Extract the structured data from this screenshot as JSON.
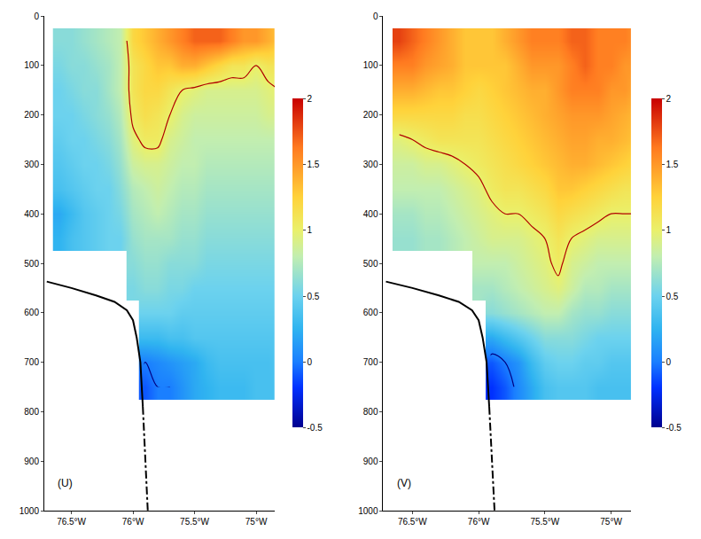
{
  "chart_data": [
    {
      "type": "heatmap",
      "label": "(U)",
      "grid": false,
      "xlim": [
        -76.72,
        -74.85
      ],
      "xticks": [
        {
          "value": -76.5,
          "label": "76.5°W"
        },
        {
          "value": -76,
          "label": "76°W"
        },
        {
          "value": -75.5,
          "label": "75.5°W"
        },
        {
          "value": -75,
          "label": "75°W"
        }
      ],
      "ylim": [
        1000,
        0
      ],
      "yticks": [
        0,
        100,
        200,
        300,
        400,
        500,
        600,
        700,
        800,
        900,
        1000
      ],
      "zlim": [
        -0.5,
        2
      ],
      "zticks": [
        -0.5,
        0,
        0.5,
        1,
        1.5,
        2
      ],
      "contours": [
        {
          "value": 1,
          "color": "#b00000"
        },
        {
          "value": 0,
          "color": "#000080"
        }
      ],
      "x": [
        -76.6,
        -76.5,
        -76.4,
        -76.3,
        -76.2,
        -76.1,
        -76.0,
        -75.9,
        -75.8,
        -75.7,
        -75.6,
        -75.5,
        -75.4,
        -75.3,
        -75.2,
        -75.1,
        -75.0,
        -74.9,
        -74.8
      ],
      "y": [
        50,
        100,
        150,
        200,
        250,
        300,
        350,
        400,
        450,
        500,
        550,
        600,
        650,
        700,
        750
      ],
      "z": [
        [
          0.6,
          0.6,
          0.65,
          0.7,
          0.75,
          0.8,
          1.2,
          1.3,
          1.4,
          1.5,
          1.6,
          1.7,
          1.7,
          1.7,
          1.6,
          1.5,
          1.5,
          1.4,
          1.3
        ],
        [
          0.55,
          0.6,
          0.6,
          0.65,
          0.7,
          0.8,
          1.1,
          1.2,
          1.3,
          1.3,
          1.4,
          1.4,
          1.3,
          1.2,
          1.1,
          1.1,
          1.0,
          1.1,
          1.1
        ],
        [
          0.5,
          0.55,
          0.6,
          0.6,
          0.7,
          0.8,
          1.1,
          1.2,
          1.2,
          1.1,
          1.0,
          0.95,
          0.9,
          0.9,
          0.9,
          0.9,
          0.9,
          0.95,
          1.0
        ],
        [
          0.5,
          0.5,
          0.55,
          0.6,
          0.65,
          0.75,
          1.05,
          1.15,
          1.1,
          1.0,
          0.9,
          0.85,
          0.85,
          0.85,
          0.85,
          0.85,
          0.85,
          0.9,
          0.9
        ],
        [
          0.45,
          0.5,
          0.5,
          0.55,
          0.6,
          0.7,
          0.95,
          1.05,
          1.05,
          0.9,
          0.85,
          0.8,
          0.8,
          0.8,
          0.8,
          0.8,
          0.8,
          0.8,
          0.8
        ],
        [
          0.4,
          0.45,
          0.5,
          0.5,
          0.55,
          0.65,
          0.85,
          0.9,
          0.9,
          0.85,
          0.8,
          0.8,
          0.75,
          0.75,
          0.75,
          0.75,
          0.75,
          0.75,
          0.75
        ],
        [
          0.35,
          0.4,
          0.45,
          0.5,
          0.5,
          0.6,
          0.75,
          0.8,
          0.85,
          0.8,
          0.75,
          0.75,
          0.7,
          0.7,
          0.7,
          0.7,
          0.7,
          0.7,
          0.7
        ],
        [
          0.2,
          0.3,
          0.4,
          0.45,
          0.5,
          0.55,
          0.7,
          0.75,
          0.8,
          0.75,
          0.7,
          0.7,
          0.65,
          0.65,
          0.65,
          0.65,
          0.65,
          0.65,
          0.65
        ],
        [
          0.25,
          0.35,
          0.4,
          0.45,
          0.5,
          0.5,
          0.65,
          0.7,
          0.7,
          0.7,
          0.65,
          0.65,
          0.6,
          0.6,
          0.6,
          0.6,
          0.6,
          0.6,
          0.6
        ],
        [
          null,
          null,
          null,
          null,
          null,
          null,
          0.6,
          0.65,
          0.65,
          0.6,
          0.6,
          0.6,
          0.55,
          0.55,
          0.55,
          0.55,
          0.55,
          0.55,
          0.55
        ],
        [
          null,
          null,
          null,
          null,
          null,
          null,
          0.55,
          0.6,
          0.6,
          0.55,
          0.55,
          0.5,
          0.5,
          0.5,
          0.5,
          0.5,
          0.5,
          0.5,
          0.5
        ],
        [
          null,
          null,
          null,
          null,
          null,
          null,
          null,
          0.5,
          0.5,
          0.5,
          0.45,
          0.45,
          0.45,
          0.45,
          0.45,
          0.45,
          0.45,
          0.45,
          0.45
        ],
        [
          null,
          null,
          null,
          null,
          null,
          null,
          null,
          0.3,
          0.3,
          0.35,
          0.35,
          0.4,
          0.4,
          0.4,
          0.4,
          0.4,
          0.4,
          0.4,
          0.4
        ],
        [
          null,
          null,
          null,
          null,
          null,
          null,
          null,
          0.0,
          0.05,
          0.1,
          0.15,
          0.2,
          0.3,
          0.35,
          0.35,
          0.35,
          0.35,
          0.35,
          0.4
        ],
        [
          null,
          null,
          null,
          null,
          null,
          null,
          null,
          -0.1,
          0.0,
          0.0,
          0.1,
          0.2,
          0.25,
          0.3,
          0.3,
          0.3,
          0.35,
          0.35,
          0.35
        ]
      ],
      "seabed": [
        {
          "x": [
            -76.7,
            -76.5,
            -76.3,
            -76.15,
            -76.05,
            -76.0,
            -75.97,
            -75.94,
            -75.92
          ],
          "y": [
            537,
            550,
            565,
            578,
            595,
            615,
            650,
            700,
            790
          ],
          "color": "#000000",
          "line_style": "solid"
        },
        {
          "x": [
            -75.92,
            -75.91,
            -75.9,
            -75.89,
            -75.88
          ],
          "y": [
            790,
            850,
            900,
            950,
            1000
          ],
          "color": "#000000",
          "line_style": "dashdot"
        }
      ]
    },
    {
      "type": "heatmap",
      "label": "(V)",
      "grid": false,
      "xlim": [
        -76.72,
        -74.85
      ],
      "xticks": [
        {
          "value": -76.5,
          "label": "76.5°W"
        },
        {
          "value": -76,
          "label": "76°W"
        },
        {
          "value": -75.5,
          "label": "75.5°W"
        },
        {
          "value": -75,
          "label": "75°W"
        }
      ],
      "ylim": [
        1000,
        0
      ],
      "yticks": [
        0,
        100,
        200,
        300,
        400,
        500,
        600,
        700,
        800,
        900,
        1000
      ],
      "zlim": [
        -0.5,
        2
      ],
      "zticks": [
        -0.5,
        0,
        0.5,
        1,
        1.5,
        2
      ],
      "contours": [
        {
          "value": 1,
          "color": "#b00000"
        },
        {
          "value": 0,
          "color": "#000080"
        }
      ],
      "x": [
        -76.6,
        -76.5,
        -76.4,
        -76.3,
        -76.2,
        -76.1,
        -76.0,
        -75.9,
        -75.8,
        -75.7,
        -75.6,
        -75.5,
        -75.4,
        -75.3,
        -75.2,
        -75.1,
        -75.0,
        -74.9,
        -74.8
      ],
      "y": [
        50,
        100,
        150,
        200,
        250,
        300,
        350,
        400,
        450,
        500,
        550,
        600,
        650,
        700,
        750
      ],
      "z": [
        [
          1.8,
          1.7,
          1.6,
          1.5,
          1.4,
          1.3,
          1.3,
          1.3,
          1.4,
          1.5,
          1.6,
          1.6,
          1.6,
          1.7,
          1.7,
          1.6,
          1.6,
          1.6,
          1.5
        ],
        [
          1.6,
          1.6,
          1.5,
          1.45,
          1.4,
          1.3,
          1.3,
          1.3,
          1.3,
          1.4,
          1.5,
          1.5,
          1.5,
          1.6,
          1.7,
          1.6,
          1.6,
          1.5,
          1.5
        ],
        [
          1.4,
          1.4,
          1.35,
          1.3,
          1.3,
          1.25,
          1.2,
          1.25,
          1.3,
          1.35,
          1.4,
          1.4,
          1.5,
          1.6,
          1.6,
          1.6,
          1.5,
          1.5,
          1.4
        ],
        [
          1.2,
          1.2,
          1.2,
          1.2,
          1.2,
          1.15,
          1.15,
          1.2,
          1.25,
          1.3,
          1.35,
          1.4,
          1.45,
          1.5,
          1.5,
          1.5,
          1.45,
          1.4,
          1.35
        ],
        [
          0.95,
          1.0,
          1.05,
          1.1,
          1.1,
          1.1,
          1.1,
          1.15,
          1.2,
          1.25,
          1.3,
          1.35,
          1.4,
          1.45,
          1.45,
          1.4,
          1.4,
          1.35,
          1.3
        ],
        [
          0.85,
          0.85,
          0.9,
          0.9,
          0.95,
          1.0,
          1.05,
          1.1,
          1.15,
          1.2,
          1.25,
          1.3,
          1.35,
          1.4,
          1.4,
          1.35,
          1.3,
          1.25,
          1.2
        ],
        [
          0.8,
          0.8,
          0.8,
          0.8,
          0.85,
          0.9,
          0.95,
          1.05,
          1.1,
          1.1,
          1.15,
          1.2,
          1.3,
          1.3,
          1.25,
          1.2,
          1.15,
          1.1,
          1.1
        ],
        [
          0.7,
          0.7,
          0.75,
          0.75,
          0.8,
          0.85,
          0.9,
          0.95,
          1.0,
          1.0,
          1.05,
          1.1,
          1.2,
          1.15,
          1.1,
          1.05,
          1.0,
          1.0,
          1.0
        ],
        [
          0.65,
          0.65,
          0.7,
          0.7,
          0.75,
          0.8,
          0.85,
          0.9,
          0.9,
          0.9,
          0.95,
          1.0,
          1.1,
          1.0,
          0.95,
          0.9,
          0.9,
          0.9,
          0.9
        ],
        [
          null,
          null,
          null,
          null,
          null,
          null,
          0.8,
          0.8,
          0.8,
          0.85,
          0.9,
          0.95,
          1.05,
          0.9,
          0.85,
          0.8,
          0.8,
          0.8,
          0.8
        ],
        [
          null,
          null,
          null,
          null,
          null,
          null,
          0.7,
          0.7,
          0.75,
          0.8,
          0.85,
          0.9,
          0.95,
          0.85,
          0.75,
          0.75,
          0.7,
          0.7,
          0.7
        ],
        [
          null,
          null,
          null,
          null,
          null,
          null,
          null,
          0.6,
          0.65,
          0.7,
          0.75,
          0.8,
          0.8,
          0.7,
          0.65,
          0.65,
          0.6,
          0.6,
          0.6
        ],
        [
          null,
          null,
          null,
          null,
          null,
          null,
          null,
          0.2,
          0.3,
          0.4,
          0.5,
          0.6,
          0.6,
          0.6,
          0.55,
          0.5,
          0.5,
          0.5,
          0.5
        ],
        [
          null,
          null,
          null,
          null,
          null,
          null,
          null,
          -0.1,
          0.0,
          0.1,
          0.3,
          0.45,
          0.5,
          0.5,
          0.45,
          0.45,
          0.4,
          0.4,
          0.4
        ],
        [
          null,
          null,
          null,
          null,
          null,
          null,
          null,
          -0.2,
          -0.1,
          0.05,
          0.2,
          0.35,
          0.4,
          0.4,
          0.4,
          0.35,
          0.35,
          0.35,
          0.35
        ]
      ],
      "seabed": [
        {
          "x": [
            -76.7,
            -76.5,
            -76.3,
            -76.15,
            -76.05,
            -76.0,
            -75.97,
            -75.94,
            -75.92
          ],
          "y": [
            537,
            550,
            565,
            578,
            595,
            615,
            650,
            700,
            790
          ],
          "color": "#000000",
          "line_style": "solid"
        },
        {
          "x": [
            -75.92,
            -75.91,
            -75.9,
            -75.89,
            -75.88
          ],
          "y": [
            790,
            850,
            900,
            950,
            1000
          ],
          "color": "#000000",
          "line_style": "dashdot"
        }
      ]
    }
  ]
}
